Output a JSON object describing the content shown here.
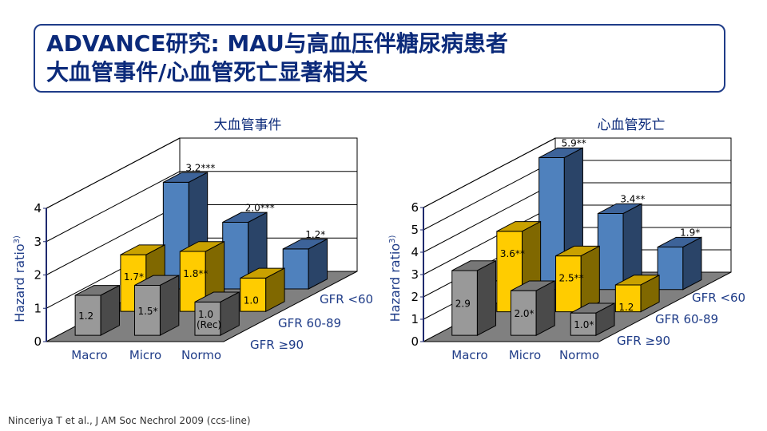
{
  "title": {
    "line1": "ADVANCE研究: MAU与高血压伴糖尿病患者",
    "line2": "大血管事件/心血管死亡显著相关"
  },
  "citation": "Ninceriya T et al., J AM Soc Nechrol 2009 (ccs-line)",
  "colors": {
    "gfr_ge90": "#999999",
    "gfr_60_89": "#ffcc00",
    "gfr_lt60": "#4f81bd",
    "accent": "#1f3c88"
  },
  "chart_data": [
    {
      "type": "bar",
      "title": "大血管事件",
      "ylabel": "Hazard ratio",
      "ylabel_sup": "3)",
      "ylim": [
        0,
        4
      ],
      "yticks": [
        "0",
        "1",
        "2",
        "3",
        "4"
      ],
      "categories": [
        "Macro",
        "Micro",
        "Normo"
      ],
      "grid": true,
      "series": [
        {
          "name": "GFR ≥90",
          "values": [
            1.2,
            1.5,
            1.0
          ],
          "labels": [
            "1.2",
            "1.5*",
            "1.0"
          ],
          "sublabels": [
            "",
            "",
            "(Rec)"
          ]
        },
        {
          "name": "GFR 60-89",
          "values": [
            1.7,
            1.8,
            1.0
          ],
          "labels": [
            "1.7*",
            "1.8**",
            "1.0"
          ],
          "sublabels": [
            "",
            "",
            ""
          ]
        },
        {
          "name": "GFR <60",
          "values": [
            3.2,
            2.0,
            1.2
          ],
          "labels": [
            "3.2***",
            "2.0***",
            "1.2*"
          ],
          "sublabels": [
            "",
            "",
            ""
          ]
        }
      ]
    },
    {
      "type": "bar",
      "title": "心血管死亡",
      "ylabel": "Hazard ratio",
      "ylabel_sup": "3)",
      "ylim": [
        0,
        6
      ],
      "yticks": [
        "0",
        "1",
        "2",
        "3",
        "4",
        "5",
        "6"
      ],
      "categories": [
        "Macro",
        "Micro",
        "Normo"
      ],
      "grid": true,
      "series": [
        {
          "name": "GFR ≥90",
          "values": [
            2.9,
            2.0,
            1.0
          ],
          "labels": [
            "2.9",
            "2.0*",
            "1.0*"
          ],
          "sublabels": [
            "",
            "",
            ""
          ]
        },
        {
          "name": "GFR 60-89",
          "values": [
            3.6,
            2.5,
            1.2
          ],
          "labels": [
            "3.6**",
            "2.5**",
            "1.2"
          ],
          "sublabels": [
            "",
            "",
            ""
          ]
        },
        {
          "name": "GFR <60",
          "values": [
            5.9,
            3.4,
            1.9
          ],
          "labels": [
            "5.9**",
            "3.4**",
            "1.9*"
          ],
          "sublabels": [
            "",
            "",
            ""
          ]
        }
      ]
    }
  ]
}
